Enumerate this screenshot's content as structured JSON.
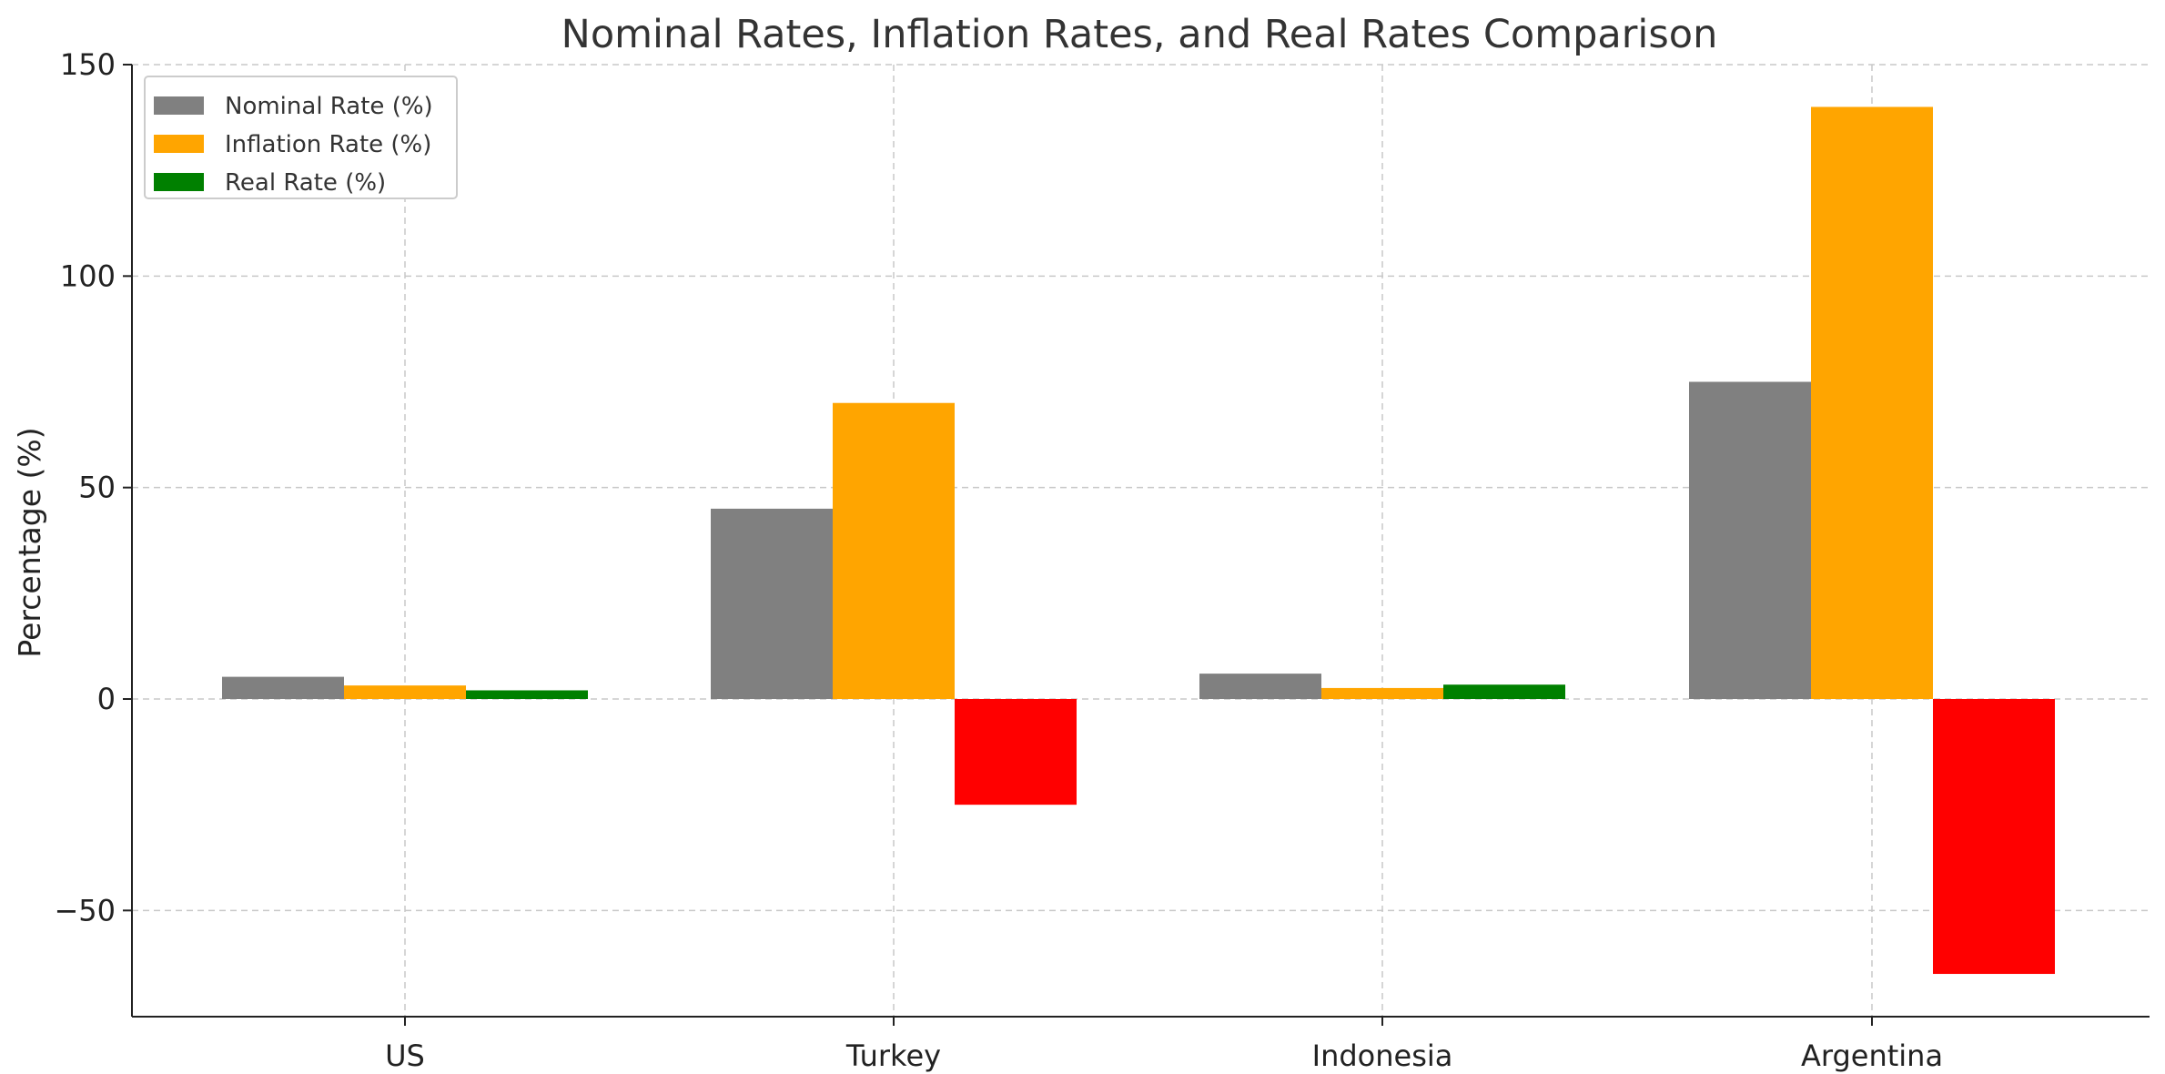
{
  "chart_data": {
    "type": "bar",
    "title": "Nominal Rates, Inflation Rates, and Real Rates Comparison",
    "xlabel": "",
    "ylabel": "Percentage (%)",
    "categories": [
      "US",
      "Turkey",
      "Indonesia",
      "Argentina"
    ],
    "ylim": [
      -75,
      150
    ],
    "yticks": [
      -50,
      0,
      50,
      100,
      150
    ],
    "ytick_labels": [
      "−50",
      "0",
      "50",
      "100",
      "150"
    ],
    "grid": true,
    "legend_position": "top-left",
    "series": [
      {
        "name": "Nominal Rate (%)",
        "color": "#808080",
        "values": [
          5.25,
          45,
          6,
          75
        ]
      },
      {
        "name": "Inflation Rate (%)",
        "color": "#FFA500",
        "values": [
          3.2,
          70,
          2.6,
          140
        ]
      },
      {
        "name": "Real Rate (%)",
        "color": "#008000",
        "values": [
          2.05,
          -25,
          3.4,
          -65
        ]
      }
    ],
    "negative_color": "#FF0000"
  }
}
